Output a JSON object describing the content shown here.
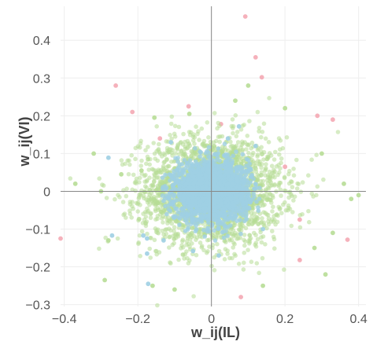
{
  "chart_data": {
    "type": "scatter",
    "title": "",
    "xlabel": "w_ij(IL)",
    "ylabel": "w_ij(VI)",
    "xlim": [
      -0.41,
      0.42
    ],
    "ylim": [
      -0.305,
      0.49
    ],
    "x_ticks": [
      -0.4,
      -0.2,
      0,
      0.2,
      0.4
    ],
    "x_tick_labels": [
      "−0.4",
      "−0.2",
      "0",
      "0.2",
      "0.4"
    ],
    "y_ticks": [
      -0.3,
      -0.2,
      -0.1,
      0,
      0.1,
      0.2,
      0.3,
      0.4
    ],
    "y_tick_labels": [
      "−0.3",
      "−0.2",
      "−0.1",
      "0",
      "0.1",
      "0.2",
      "0.3",
      "0.4"
    ],
    "grid": true,
    "zero_lines": true,
    "legend": "none",
    "series": [
      {
        "color": "#f4a9b4",
        "cloud": null,
        "points": [
          [
            0.092,
            0.463
          ],
          [
            0.12,
            0.355
          ],
          [
            0.137,
            0.302
          ],
          [
            -0.26,
            0.28
          ],
          [
            -0.215,
            0.21
          ],
          [
            -0.062,
            0.225
          ],
          [
            0.026,
            0.178
          ],
          [
            0.288,
            0.2
          ],
          [
            0.33,
            0.19
          ],
          [
            -0.41,
            -0.125
          ],
          [
            0.24,
            -0.182
          ],
          [
            0.37,
            -0.128
          ],
          [
            0.24,
            -0.075
          ],
          [
            0.08,
            -0.28
          ],
          [
            0.2,
            0.065
          ],
          [
            -0.14,
            0.14
          ]
        ]
      },
      {
        "color": "#b7dd96",
        "cloud": {
          "n": 2600,
          "sx": 0.095,
          "sy": 0.072,
          "max_r": 0.42
        },
        "points": [
          [
            -0.245,
            0.045
          ],
          [
            -0.19,
            0.055
          ],
          [
            -0.3,
            0.0
          ],
          [
            0.36,
            0.02
          ],
          [
            0.38,
            -0.02
          ],
          [
            -0.28,
            -0.13
          ],
          [
            0.33,
            -0.11
          ],
          [
            0.3,
            0.1
          ],
          [
            -0.16,
            -0.25
          ],
          [
            0.14,
            -0.25
          ],
          [
            0.31,
            -0.22
          ],
          [
            -0.29,
            -0.235
          ],
          [
            -0.06,
            0.205
          ],
          [
            0.065,
            0.24
          ],
          [
            -0.37,
            0.02
          ],
          [
            0.4,
            -0.01
          ],
          [
            0.1,
            0.28
          ],
          [
            -0.1,
            -0.26
          ],
          [
            -0.155,
            0.195
          ],
          [
            0.2,
            0.22
          ],
          [
            -0.32,
            0.1
          ],
          [
            0.28,
            -0.15
          ]
        ]
      },
      {
        "color": "#9fcfe3",
        "cloud": {
          "n": 2300,
          "sx": 0.05,
          "sy": 0.038,
          "max_r": 0.14
        },
        "points": [
          [
            -0.28,
            0.089
          ],
          [
            -0.27,
            -0.117
          ],
          [
            -0.185,
            -0.117
          ],
          [
            -0.175,
            -0.125
          ],
          [
            -0.175,
            -0.165
          ],
          [
            -0.172,
            -0.245
          ],
          [
            0.075,
            0.172
          ],
          [
            -0.05,
            -0.158
          ],
          [
            0.02,
            -0.17
          ],
          [
            0.045,
            0.14
          ],
          [
            -0.11,
            0.13
          ],
          [
            0.12,
            0.12
          ],
          [
            -0.13,
            -0.13
          ],
          [
            0.14,
            -0.1
          ]
        ]
      }
    ]
  }
}
